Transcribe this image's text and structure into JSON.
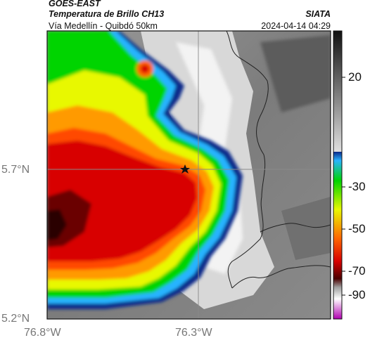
{
  "header": {
    "satellite": "GOES-EAST",
    "product": "Temperatura de Brillo CH13",
    "location": "Vía Medellín - Quibdó 50km",
    "organization": "SIATA",
    "datetime": "2024-04-14 04:29"
  },
  "axes": {
    "y_ticks": [
      "5.7°N",
      "5.2°N"
    ],
    "x_ticks": [
      "76.8°W",
      "76.3°W"
    ]
  },
  "colorbar": {
    "labels": [
      "20",
      "-30",
      "-50",
      "-70",
      "-90"
    ],
    "ticks_values": [
      20,
      -30,
      -50,
      -70,
      -90
    ]
  },
  "map": {
    "marker": "star-icon",
    "gridlines": true
  },
  "colors": {
    "cold_core": "#d80000",
    "warm_cloud": "#f2f2f2",
    "ground": "#808080"
  }
}
